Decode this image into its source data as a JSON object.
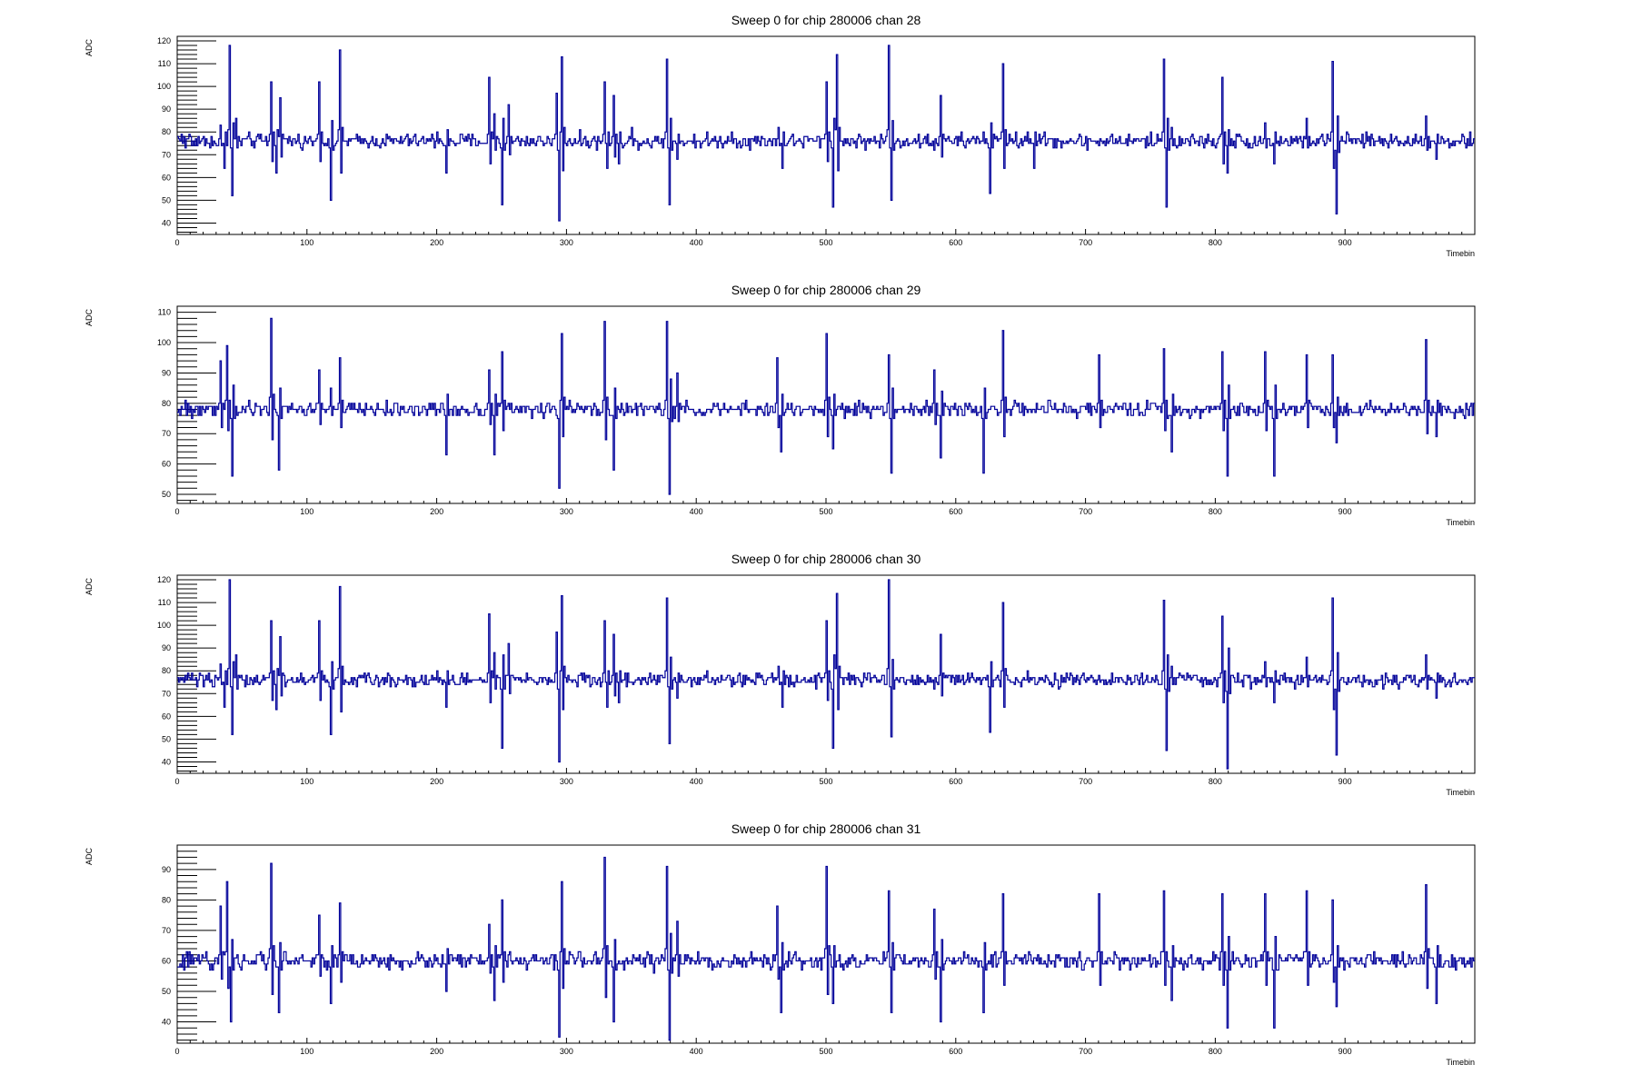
{
  "colors": {
    "line": "#000099",
    "frame": "#000000",
    "background": "#ffffff"
  },
  "chart_data": [
    {
      "type": "line",
      "title": "Sweep 0 for chip 280006 chan 28",
      "xlabel": "Timebin",
      "ylabel": "ADC",
      "xlim": [
        0,
        1000
      ],
      "ylim": [
        35,
        122
      ],
      "xticks": [
        0,
        100,
        200,
        300,
        400,
        500,
        600,
        700,
        800,
        900
      ],
      "yticks": [
        40,
        50,
        60,
        70,
        80,
        90,
        100,
        110,
        120
      ],
      "baseline": 76,
      "noise": 1.6,
      "spikes": [
        [
          33,
          83
        ],
        [
          36,
          64
        ],
        [
          40,
          118
        ],
        [
          42,
          52
        ],
        [
          45,
          86
        ],
        [
          72,
          102
        ],
        [
          76,
          62
        ],
        [
          79,
          95
        ],
        [
          109,
          102
        ],
        [
          118,
          50
        ],
        [
          125,
          116
        ],
        [
          200,
          80
        ],
        [
          207,
          62
        ],
        [
          240,
          104
        ],
        [
          244,
          88
        ],
        [
          250,
          48
        ],
        [
          255,
          92
        ],
        [
          292,
          97
        ],
        [
          294,
          41
        ],
        [
          296,
          113
        ],
        [
          329,
          102
        ],
        [
          331,
          64
        ],
        [
          336,
          96
        ],
        [
          340,
          66
        ],
        [
          350,
          82
        ],
        [
          377,
          112
        ],
        [
          379,
          48
        ],
        [
          385,
          68
        ],
        [
          427,
          80
        ],
        [
          463,
          82
        ],
        [
          466,
          64
        ],
        [
          500,
          102
        ],
        [
          505,
          47
        ],
        [
          508,
          114
        ],
        [
          548,
          118
        ],
        [
          550,
          50
        ],
        [
          583,
          72
        ],
        [
          588,
          96
        ],
        [
          621,
          80
        ],
        [
          626,
          53
        ],
        [
          636,
          110
        ],
        [
          655,
          80
        ],
        [
          660,
          64
        ],
        [
          710,
          74
        ],
        [
          760,
          112
        ],
        [
          762,
          47
        ],
        [
          766,
          82
        ],
        [
          805,
          104
        ],
        [
          809,
          62
        ],
        [
          838,
          84
        ],
        [
          845,
          66
        ],
        [
          870,
          86
        ],
        [
          890,
          111
        ],
        [
          893,
          44
        ],
        [
          962,
          87
        ],
        [
          970,
          68
        ]
      ]
    },
    {
      "type": "line",
      "title": "Sweep 0 for chip 280006 chan 29",
      "xlabel": "Timebin",
      "ylabel": "ADC",
      "xlim": [
        0,
        1000
      ],
      "ylim": [
        47,
        112
      ],
      "xticks": [
        0,
        100,
        200,
        300,
        400,
        500,
        600,
        700,
        800,
        900
      ],
      "yticks": [
        50,
        60,
        70,
        80,
        90,
        100,
        110
      ],
      "baseline": 78,
      "noise": 1.2,
      "spikes": [
        [
          33,
          94
        ],
        [
          38,
          99
        ],
        [
          42,
          56
        ],
        [
          72,
          108
        ],
        [
          78,
          58
        ],
        [
          109,
          91
        ],
        [
          118,
          85
        ],
        [
          125,
          95
        ],
        [
          207,
          63
        ],
        [
          240,
          91
        ],
        [
          244,
          63
        ],
        [
          250,
          97
        ],
        [
          294,
          52
        ],
        [
          296,
          103
        ],
        [
          329,
          107
        ],
        [
          336,
          58
        ],
        [
          377,
          107
        ],
        [
          379,
          50
        ],
        [
          385,
          90
        ],
        [
          462,
          95
        ],
        [
          465,
          64
        ],
        [
          500,
          103
        ],
        [
          505,
          65
        ],
        [
          548,
          96
        ],
        [
          550,
          57
        ],
        [
          583,
          91
        ],
        [
          588,
          62
        ],
        [
          621,
          57
        ],
        [
          636,
          104
        ],
        [
          710,
          96
        ],
        [
          760,
          98
        ],
        [
          766,
          64
        ],
        [
          805,
          97
        ],
        [
          809,
          56
        ],
        [
          838,
          97
        ],
        [
          845,
          56
        ],
        [
          870,
          96
        ],
        [
          890,
          96
        ],
        [
          893,
          67
        ],
        [
          962,
          101
        ],
        [
          970,
          69
        ]
      ]
    },
    {
      "type": "line",
      "title": "Sweep 0 for chip 280006 chan 30",
      "xlabel": "Timebin",
      "ylabel": "ADC",
      "xlim": [
        0,
        1000
      ],
      "ylim": [
        35,
        122
      ],
      "xticks": [
        0,
        100,
        200,
        300,
        400,
        500,
        600,
        700,
        800,
        900
      ],
      "yticks": [
        40,
        50,
        60,
        70,
        80,
        90,
        100,
        110,
        120
      ],
      "baseline": 76,
      "noise": 1.5,
      "spikes": [
        [
          33,
          83
        ],
        [
          36,
          64
        ],
        [
          40,
          120
        ],
        [
          42,
          52
        ],
        [
          45,
          87
        ],
        [
          72,
          102
        ],
        [
          76,
          63
        ],
        [
          79,
          95
        ],
        [
          109,
          102
        ],
        [
          118,
          52
        ],
        [
          125,
          117
        ],
        [
          200,
          80
        ],
        [
          207,
          64
        ],
        [
          240,
          105
        ],
        [
          244,
          88
        ],
        [
          250,
          46
        ],
        [
          255,
          92
        ],
        [
          292,
          97
        ],
        [
          294,
          40
        ],
        [
          296,
          113
        ],
        [
          329,
          102
        ],
        [
          331,
          64
        ],
        [
          336,
          96
        ],
        [
          340,
          66
        ],
        [
          377,
          112
        ],
        [
          379,
          48
        ],
        [
          385,
          68
        ],
        [
          463,
          82
        ],
        [
          466,
          64
        ],
        [
          500,
          102
        ],
        [
          505,
          46
        ],
        [
          508,
          114
        ],
        [
          548,
          120
        ],
        [
          550,
          51
        ],
        [
          583,
          72
        ],
        [
          588,
          96
        ],
        [
          626,
          53
        ],
        [
          636,
          110
        ],
        [
          655,
          80
        ],
        [
          760,
          111
        ],
        [
          762,
          45
        ],
        [
          766,
          82
        ],
        [
          805,
          104
        ],
        [
          809,
          37
        ],
        [
          838,
          84
        ],
        [
          845,
          66
        ],
        [
          870,
          86
        ],
        [
          890,
          112
        ],
        [
          893,
          43
        ],
        [
          962,
          87
        ],
        [
          970,
          68
        ]
      ]
    },
    {
      "type": "line",
      "title": "Sweep 0 for chip 280006 chan 31",
      "xlabel": "Timebin",
      "ylabel": "ADC",
      "xlim": [
        0,
        1000
      ],
      "ylim": [
        33,
        98
      ],
      "xticks": [
        0,
        100,
        200,
        300,
        400,
        500,
        600,
        700,
        800,
        900
      ],
      "yticks": [
        40,
        50,
        60,
        70,
        80,
        90
      ],
      "baseline": 60,
      "noise": 1.3,
      "spikes": [
        [
          33,
          78
        ],
        [
          38,
          86
        ],
        [
          41,
          40
        ],
        [
          72,
          92
        ],
        [
          78,
          43
        ],
        [
          109,
          75
        ],
        [
          118,
          46
        ],
        [
          125,
          79
        ],
        [
          207,
          50
        ],
        [
          240,
          72
        ],
        [
          244,
          47
        ],
        [
          250,
          80
        ],
        [
          294,
          35
        ],
        [
          296,
          86
        ],
        [
          329,
          94
        ],
        [
          336,
          40
        ],
        [
          377,
          91
        ],
        [
          379,
          34
        ],
        [
          385,
          73
        ],
        [
          462,
          78
        ],
        [
          465,
          43
        ],
        [
          500,
          91
        ],
        [
          505,
          46
        ],
        [
          548,
          83
        ],
        [
          550,
          43
        ],
        [
          583,
          77
        ],
        [
          588,
          40
        ],
        [
          621,
          43
        ],
        [
          636,
          82
        ],
        [
          710,
          82
        ],
        [
          760,
          83
        ],
        [
          766,
          47
        ],
        [
          805,
          82
        ],
        [
          809,
          38
        ],
        [
          838,
          82
        ],
        [
          845,
          38
        ],
        [
          870,
          83
        ],
        [
          890,
          80
        ],
        [
          893,
          45
        ],
        [
          962,
          85
        ],
        [
          970,
          46
        ]
      ]
    }
  ]
}
